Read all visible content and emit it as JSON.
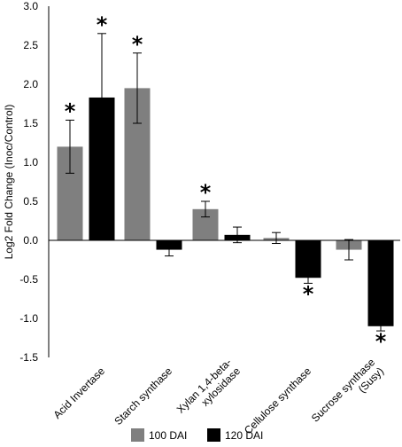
{
  "chart_data": {
    "type": "bar",
    "title": "",
    "xlabel": "",
    "ylabel": "Log2 Fold Change (Inoc/Control)",
    "ylim": [
      -1.5,
      3.0
    ],
    "y_ticks": [
      "-1.5",
      "-1.0",
      "-0.5",
      "0.0",
      "0.5",
      "1.0",
      "1.5",
      "2.0",
      "2.5",
      "3.0"
    ],
    "grid": false,
    "legend": "bottom",
    "categories": [
      "Acid Invertase",
      "Starch synthase",
      "Xylan 1,4-beta-xylosidase",
      "Cellulose synthase",
      "Sucrose synthase (Susy)"
    ],
    "category_lines": [
      [
        "Acid Invertase"
      ],
      [
        "Starch synthase"
      ],
      [
        "Xylan 1,4-beta-",
        "xylosidase"
      ],
      [
        "Cellulose synthase"
      ],
      [
        "Sucrose synthase",
        "(Susy)"
      ]
    ],
    "series": [
      {
        "name": "100 DAI",
        "color": "#7f7f7f",
        "values": [
          1.2,
          1.95,
          0.4,
          0.03,
          -0.12
        ],
        "errors": [
          0.34,
          0.45,
          0.1,
          0.07,
          0.13
        ],
        "significant": [
          true,
          true,
          true,
          false,
          false
        ]
      },
      {
        "name": "120 DAI",
        "color": "#000000",
        "values": [
          1.83,
          -0.12,
          0.07,
          -0.48,
          -1.1
        ],
        "errors": [
          0.82,
          0.08,
          0.1,
          0.07,
          0.06
        ],
        "significant": [
          true,
          false,
          false,
          true,
          true
        ]
      }
    ],
    "annotation_symbol": "*"
  }
}
